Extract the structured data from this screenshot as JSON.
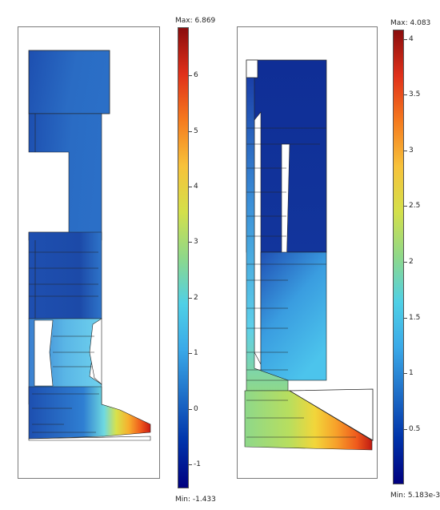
{
  "left_plot": {
    "max_label": "Max: 6.869",
    "min_label": "Min: -1.433",
    "max_value": 6.869,
    "min_value": -1.433,
    "ticks": [
      "6",
      "5",
      "4",
      "3",
      "2",
      "1",
      "0",
      "-1"
    ],
    "tick_values": [
      6,
      5,
      4,
      3,
      2,
      1,
      0,
      -1
    ]
  },
  "right_plot": {
    "max_label": "Max: 4.083",
    "min_label": "Min: 5.183e-3",
    "max_value": 4.083,
    "min_value": 0.005183,
    "ticks": [
      "4",
      "3.5",
      "3",
      "2.5",
      "2",
      "1.5",
      "1",
      "0.5"
    ],
    "tick_values": [
      4,
      3.5,
      3,
      2.5,
      2,
      1.5,
      1,
      0.5
    ]
  },
  "colors": {
    "colormap": [
      "#00007f",
      "#0033aa",
      "#1f6fc8",
      "#3aa9e8",
      "#4fd0e6",
      "#8ed88a",
      "#d4e04a",
      "#f7c23a",
      "#f57a1e",
      "#e0301a",
      "#8a0d0d"
    ]
  }
}
